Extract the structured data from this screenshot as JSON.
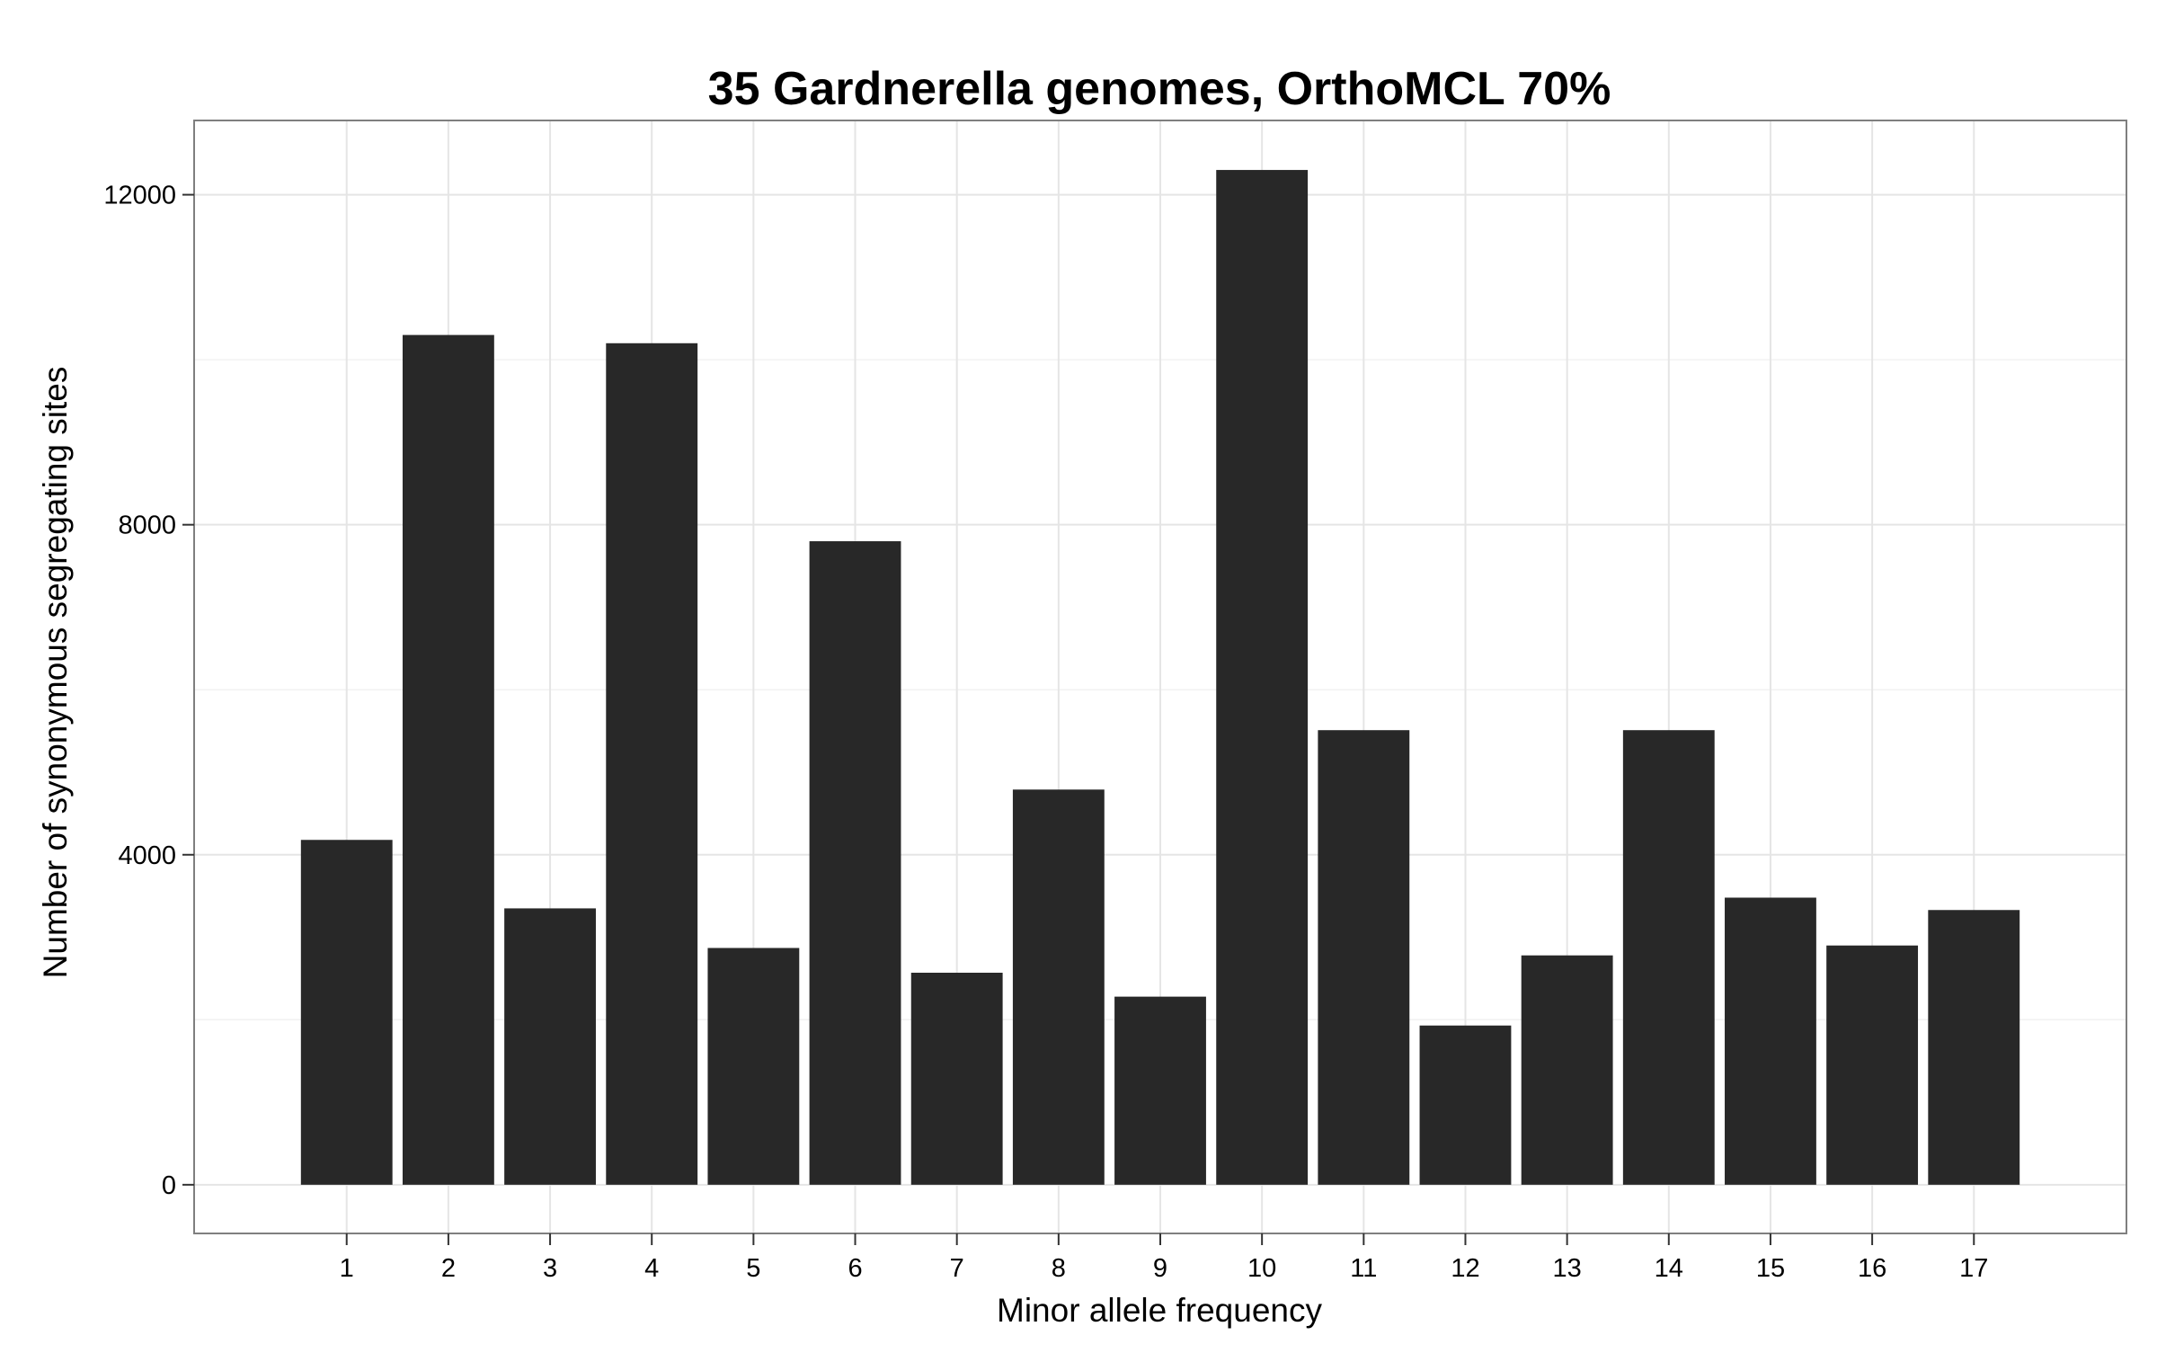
{
  "chart_data": {
    "type": "bar",
    "title": "35 Gardnerella genomes, OrthoMCL 70%",
    "xlabel": "Minor allele frequency",
    "ylabel": "Number of synonymous segregating sites",
    "categories": [
      "1",
      "2",
      "3",
      "4",
      "5",
      "6",
      "7",
      "8",
      "9",
      "10",
      "11",
      "12",
      "13",
      "14",
      "15",
      "16",
      "17"
    ],
    "values": [
      4180,
      10300,
      3350,
      10200,
      2870,
      7800,
      2570,
      4790,
      2280,
      12300,
      5510,
      1930,
      2780,
      5510,
      3480,
      2900,
      3330
    ],
    "ylim": [
      -590,
      12900
    ],
    "yticks": [
      0,
      4000,
      8000,
      12000
    ],
    "ytick_labels": [
      "0",
      "4000",
      "8000",
      "12000"
    ],
    "grid": true,
    "legend": "none",
    "colors": {
      "bar": "#282828",
      "grid": "#e5e5e5",
      "panel_border": "#7f7f7f",
      "background": "#ffffff"
    }
  }
}
